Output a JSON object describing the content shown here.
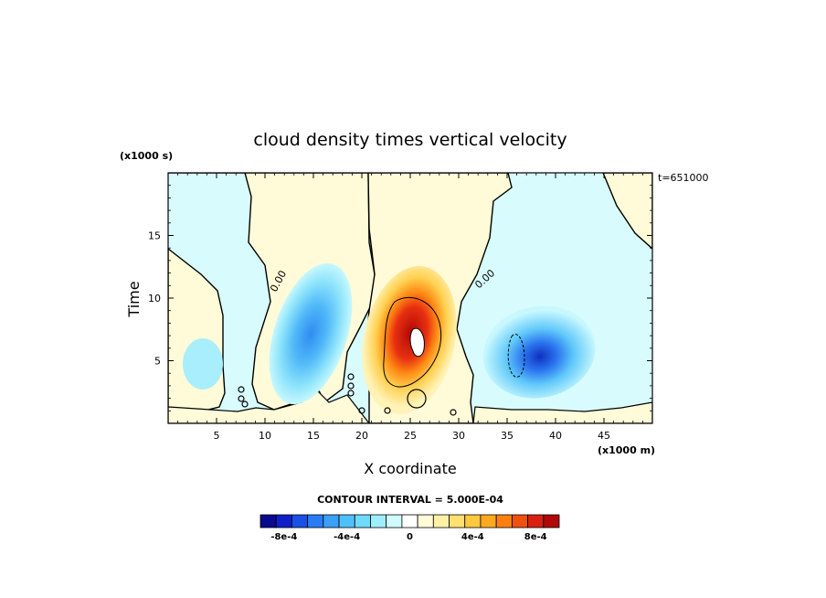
{
  "chart_data": {
    "type": "heatmap",
    "title": "cloud density times vertical velocity",
    "xlabel": "X coordinate",
    "ylabel": "Time",
    "x_units": "(x1000 m)",
    "y_units": "(x1000 s)",
    "annotation": "t=651000",
    "xlim": [
      0,
      50
    ],
    "ylim": [
      0,
      20
    ],
    "x_ticks": [
      5,
      10,
      15,
      20,
      25,
      30,
      35,
      40,
      45
    ],
    "y_ticks": [
      5,
      10,
      15
    ],
    "contour_label": "0.00",
    "contour_interval_text": "CONTOUR INTERVAL = 5.000E-04",
    "colorbar": {
      "levels": [
        "-8e-4",
        "-4e-4",
        "0",
        "4e-4",
        "8e-4"
      ],
      "colors": [
        "#0a0a8c",
        "#1020c8",
        "#1a50e6",
        "#2a7cf5",
        "#3aa0f8",
        "#50c0fa",
        "#70dafc",
        "#a0eefd",
        "#d0fafe",
        "#ffffff",
        "#fffbd8",
        "#fff0a8",
        "#ffe070",
        "#ffc840",
        "#ffa820",
        "#ff8010",
        "#f05010",
        "#d82010",
        "#b00808"
      ]
    },
    "features": [
      {
        "label": "negative",
        "x": 15,
        "y": 8,
        "min": -0.0003
      },
      {
        "label": "negative",
        "x": 36,
        "y": 5.5,
        "min": -0.0008
      },
      {
        "label": "positive",
        "x": 25.5,
        "y": 7,
        "max": 0.001
      }
    ]
  }
}
